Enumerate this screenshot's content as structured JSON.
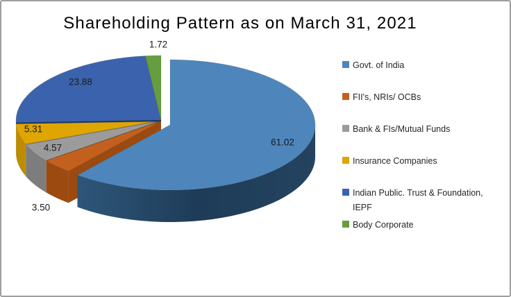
{
  "frame": {
    "border_color": "#9E9E9E",
    "background": "#FFFFFF"
  },
  "chart_data": {
    "type": "pie",
    "effect": "3d",
    "title": "Shareholding Pattern as on March 31, 2021",
    "legend_position": "right",
    "exploded_slice": "Govt. of India",
    "series": [
      {
        "name": "Govt. of India",
        "value": 61.02,
        "label": "61.02",
        "color": "#4E86BC",
        "side_color": "#1E3C58"
      },
      {
        "name": "FII's, NRIs/ OCBs",
        "value": 3.5,
        "label": "3.50",
        "color": "#C4601E",
        "side_color": "#9C4A10"
      },
      {
        "name": "Bank & FIs/Mutual Funds",
        "value": 4.57,
        "label": "4.57",
        "color": "#9B9B9B",
        "side_color": "#7D7D7D"
      },
      {
        "name": "Insurance Companies",
        "value": 5.31,
        "label": "5.31",
        "color": "#DFA500",
        "side_color": "#BE8C00"
      },
      {
        "name": "Indian Public. Trust & Foundation, IEPF",
        "value": 23.88,
        "label": "23.88",
        "color": "#3B63AD",
        "side_color": "#1F3864"
      },
      {
        "name": "Body Corporate",
        "value": 1.72,
        "label": "1.72",
        "color": "#669D3E",
        "side_color": "#3E5A24"
      }
    ]
  }
}
